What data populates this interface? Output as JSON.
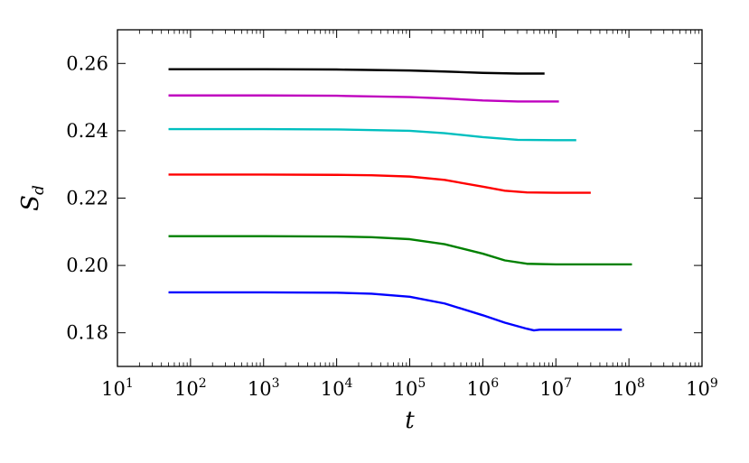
{
  "chart_data": {
    "type": "line",
    "title": "",
    "xlabel": "t",
    "ylabel": {
      "base": "S",
      "sub": "d"
    },
    "xscale": "log",
    "xlim": [
      10,
      1000000000
    ],
    "ylim": [
      0.17,
      0.27
    ],
    "x_ticks": [
      {
        "base": "10",
        "exp": "1",
        "value": 10
      },
      {
        "base": "10",
        "exp": "2",
        "value": 100
      },
      {
        "base": "10",
        "exp": "3",
        "value": 1000
      },
      {
        "base": "10",
        "exp": "4",
        "value": 10000
      },
      {
        "base": "10",
        "exp": "5",
        "value": 100000
      },
      {
        "base": "10",
        "exp": "6",
        "value": 1000000
      },
      {
        "base": "10",
        "exp": "7",
        "value": 10000000
      },
      {
        "base": "10",
        "exp": "8",
        "value": 100000000
      },
      {
        "base": "10",
        "exp": "9",
        "value": 1000000000
      }
    ],
    "y_ticks": [
      {
        "label": "0.18",
        "value": 0.18
      },
      {
        "label": "0.20",
        "value": 0.2
      },
      {
        "label": "0.22",
        "value": 0.22
      },
      {
        "label": "0.24",
        "value": 0.24
      },
      {
        "label": "0.26",
        "value": 0.26
      }
    ],
    "grid": false,
    "legend": "none",
    "series": [
      {
        "color": "#000000",
        "x": [
          50,
          1000,
          10000,
          100000,
          300000,
          1000000,
          3000000,
          7000000
        ],
        "y": [
          0.2583,
          0.2583,
          0.2582,
          0.2579,
          0.2576,
          0.2572,
          0.257,
          0.257
        ]
      },
      {
        "color": "#bf00bf",
        "x": [
          50,
          1000,
          10000,
          100000,
          300000,
          1000000,
          3000000,
          11000000
        ],
        "y": [
          0.2505,
          0.2505,
          0.2504,
          0.25,
          0.2496,
          0.249,
          0.2487,
          0.2487
        ]
      },
      {
        "color": "#00bfbf",
        "x": [
          50,
          1000,
          10000,
          100000,
          300000,
          1000000,
          3000000,
          10000000,
          19000000
        ],
        "y": [
          0.2405,
          0.2405,
          0.2404,
          0.24,
          0.2393,
          0.2381,
          0.2373,
          0.2372,
          0.2372
        ]
      },
      {
        "color": "#ff0000",
        "x": [
          50,
          1000,
          10000,
          30000,
          100000,
          300000,
          1000000,
          2000000,
          4000000,
          10000000,
          30000000
        ],
        "y": [
          0.227,
          0.227,
          0.2269,
          0.2268,
          0.2264,
          0.2254,
          0.2234,
          0.2222,
          0.2217,
          0.2216,
          0.2216
        ]
      },
      {
        "color": "#008000",
        "x": [
          50,
          1000,
          10000,
          30000,
          100000,
          300000,
          1000000,
          2000000,
          4000000,
          10000000,
          30000000,
          110000000
        ],
        "y": [
          0.2087,
          0.2087,
          0.2086,
          0.2084,
          0.2078,
          0.2063,
          0.2035,
          0.2015,
          0.2005,
          0.2003,
          0.2003,
          0.2003
        ]
      },
      {
        "color": "#0000ff",
        "x": [
          50,
          1000,
          10000,
          30000,
          100000,
          300000,
          1000000,
          2000000,
          4000000,
          5000000,
          6000000,
          10000000,
          30000000,
          80000000
        ],
        "y": [
          0.192,
          0.192,
          0.1919,
          0.1916,
          0.1907,
          0.1887,
          0.1852,
          0.183,
          0.1812,
          0.1807,
          0.1809,
          0.1809,
          0.1809,
          0.1809
        ]
      }
    ]
  }
}
